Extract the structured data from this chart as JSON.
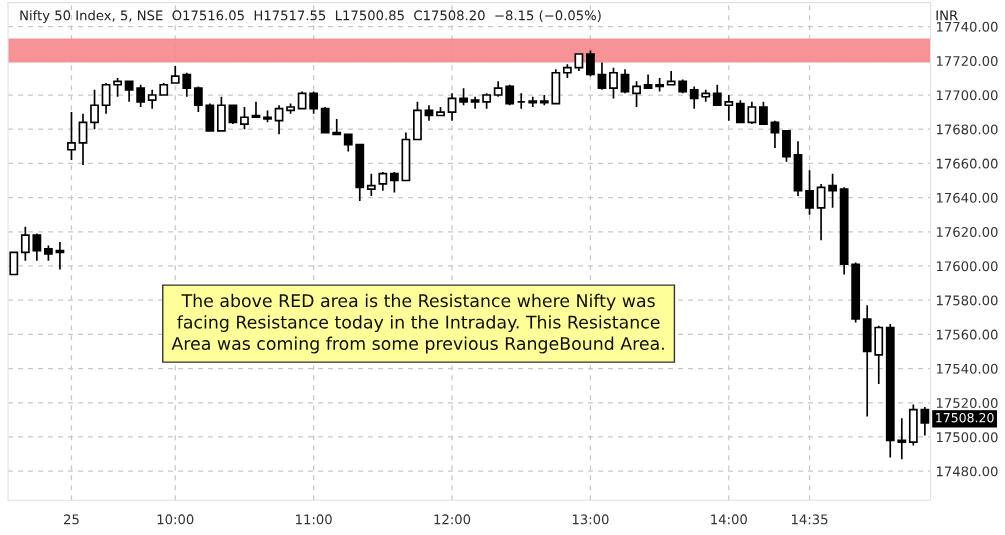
{
  "chart_data": {
    "type": "candlestick",
    "title": "Nifty 50 Index, 5, NSE  O17516.05  H17517.55  L17500.85  C17508.20  −8.15 (−0.05%)",
    "ylabel": "INR",
    "categories": [
      null,
      null,
      null,
      null,
      null,
      "25",
      null,
      null,
      null,
      null,
      null,
      null,
      null,
      null,
      "10:00",
      null,
      null,
      null,
      null,
      null,
      null,
      null,
      null,
      null,
      null,
      null,
      "11:00",
      null,
      null,
      null,
      null,
      null,
      null,
      null,
      null,
      null,
      null,
      null,
      "12:00",
      null,
      null,
      null,
      null,
      null,
      null,
      null,
      null,
      null,
      null,
      null,
      "13:00",
      null,
      null,
      null,
      null,
      null,
      null,
      null,
      null,
      null,
      null,
      null,
      "14:00",
      null,
      null,
      null,
      null,
      null,
      null,
      "14:35",
      null,
      null,
      null,
      null,
      null,
      null,
      null,
      null,
      null,
      null
    ],
    "ohlc": [
      [
        17595,
        17608,
        17595,
        17608
      ],
      [
        17608,
        17623,
        17603,
        17618
      ],
      [
        17618,
        17619,
        17603,
        17609
      ],
      [
        17610,
        17612,
        17603,
        17607
      ],
      [
        17609,
        17614,
        17598,
        17608
      ],
      [
        17668,
        17690,
        17662,
        17672
      ],
      [
        17672,
        17689,
        17659,
        17684
      ],
      [
        17684,
        17703,
        17680,
        17694
      ],
      [
        17694,
        17707,
        17689,
        17706
      ],
      [
        17706,
        17710,
        17699,
        17708
      ],
      [
        17708,
        17708,
        17696,
        17703
      ],
      [
        17704,
        17706,
        17693,
        17696
      ],
      [
        17697,
        17703,
        17692,
        17700
      ],
      [
        17700,
        17707,
        17700,
        17706
      ],
      [
        17707,
        17717,
        17707,
        17711
      ],
      [
        17712,
        17713,
        17699,
        17704
      ],
      [
        17704,
        17705,
        17690,
        17694
      ],
      [
        17694,
        17695,
        17679,
        17679
      ],
      [
        17679,
        17699,
        17679,
        17694
      ],
      [
        17694,
        17694,
        17683,
        17684
      ],
      [
        17683,
        17693,
        17680,
        17687
      ],
      [
        17688,
        17696,
        17687,
        17687
      ],
      [
        17687,
        17691,
        17684,
        17686
      ],
      [
        17685,
        17694,
        17677,
        17692
      ],
      [
        17691,
        17695,
        17689,
        17693
      ],
      [
        17692,
        17702,
        17692,
        17701
      ],
      [
        17701,
        17702,
        17689,
        17692
      ],
      [
        17692,
        17693,
        17678,
        17678
      ],
      [
        17678,
        17686,
        17677,
        17677
      ],
      [
        17677,
        17677,
        17667,
        17671
      ],
      [
        17671,
        17671,
        17638,
        17646
      ],
      [
        17645,
        17654,
        17641,
        17647
      ],
      [
        17648,
        17655,
        17644,
        17654
      ],
      [
        17654,
        17655,
        17643,
        17650
      ],
      [
        17650,
        17678,
        17650,
        17674
      ],
      [
        17674,
        17696,
        17674,
        17691
      ],
      [
        17691,
        17694,
        17685,
        17688
      ],
      [
        17688,
        17693,
        17688,
        17690
      ],
      [
        17690,
        17701,
        17685,
        17698
      ],
      [
        17698,
        17704,
        17694,
        17696
      ],
      [
        17697,
        17699,
        17692,
        17696
      ],
      [
        17696,
        17701,
        17692,
        17700
      ],
      [
        17700,
        17708,
        17699,
        17704
      ],
      [
        17705,
        17706,
        17694,
        17695
      ],
      [
        17696,
        17701,
        17692,
        17696
      ],
      [
        17696.5,
        17699,
        17693,
        17695.5
      ],
      [
        17696.5,
        17700,
        17694,
        17695.5
      ],
      [
        17695,
        17715,
        17695,
        17713
      ],
      [
        17713,
        17718,
        17710,
        17716
      ],
      [
        17716,
        17724,
        17714,
        17724
      ],
      [
        17724,
        17726,
        17711,
        17712
      ],
      [
        17712,
        17719,
        17703,
        17704
      ],
      [
        17704,
        17716,
        17698,
        17713
      ],
      [
        17712,
        17715,
        17701,
        17702
      ],
      [
        17701,
        17708,
        17693,
        17705
      ],
      [
        17706,
        17712,
        17704,
        17704
      ],
      [
        17705,
        17710,
        17702,
        17706
      ],
      [
        17706,
        17714,
        17706,
        17708
      ],
      [
        17708,
        17709,
        17701,
        17702
      ],
      [
        17703,
        17705,
        17692,
        17698
      ],
      [
        17699,
        17703,
        17696,
        17701
      ],
      [
        17701,
        17706,
        17694,
        17694
      ],
      [
        17694,
        17700,
        17685,
        17696
      ],
      [
        17695,
        17697,
        17684,
        17684
      ],
      [
        17684,
        17696,
        17683,
        17693
      ],
      [
        17693,
        17696,
        17683,
        17683
      ],
      [
        17684,
        17685,
        17669,
        17678
      ],
      [
        17679,
        17679,
        17661,
        17664
      ],
      [
        17665,
        17673,
        17641,
        17644
      ],
      [
        17644,
        17656,
        17630,
        17634
      ],
      [
        17634,
        17648,
        17615,
        17646
      ],
      [
        17647,
        17654,
        17634,
        17644
      ],
      [
        17645,
        17646,
        17595,
        17601
      ],
      [
        17601,
        17602,
        17567,
        17569
      ],
      [
        17569,
        17577,
        17512,
        17550
      ],
      [
        17548,
        17565,
        17531,
        17564
      ],
      [
        17564,
        17566,
        17488,
        17498
      ],
      [
        17498,
        17511,
        17487,
        17497
      ],
      [
        17497,
        17519,
        17495,
        17516
      ],
      [
        17516.05,
        17517.55,
        17500.85,
        17508.2
      ]
    ],
    "ylim": [
      17463,
      17754
    ],
    "yticks": [
      {
        "value": 17480,
        "label": "17480.00"
      },
      {
        "value": 17500,
        "label": "17500.00"
      },
      {
        "value": 17520,
        "label": "17520.00"
      },
      {
        "value": 17540,
        "label": "17540.00"
      },
      {
        "value": 17560,
        "label": "17560.00"
      },
      {
        "value": 17580,
        "label": "17580.00"
      },
      {
        "value": 17600,
        "label": "17600.00"
      },
      {
        "value": 17620,
        "label": "17620.00"
      },
      {
        "value": 17640,
        "label": "17640.00"
      },
      {
        "value": 17660,
        "label": "17660.00"
      },
      {
        "value": 17680,
        "label": "17680.00"
      },
      {
        "value": 17700,
        "label": "17700.00"
      },
      {
        "value": 17720,
        "label": "17720.00"
      },
      {
        "value": 17740,
        "label": "17740.00"
      }
    ],
    "bands": [
      {
        "axis": "y",
        "from": 17719,
        "to": 17733,
        "color": "#f4878c"
      }
    ],
    "annotations": [
      "The above RED area is the Resistance where Nifty was\nfacing Resistance today in the Intraday. This Resistance\nArea was coming from some previous RangeBound Area.",
      "17508.20"
    ],
    "grid": true
  }
}
